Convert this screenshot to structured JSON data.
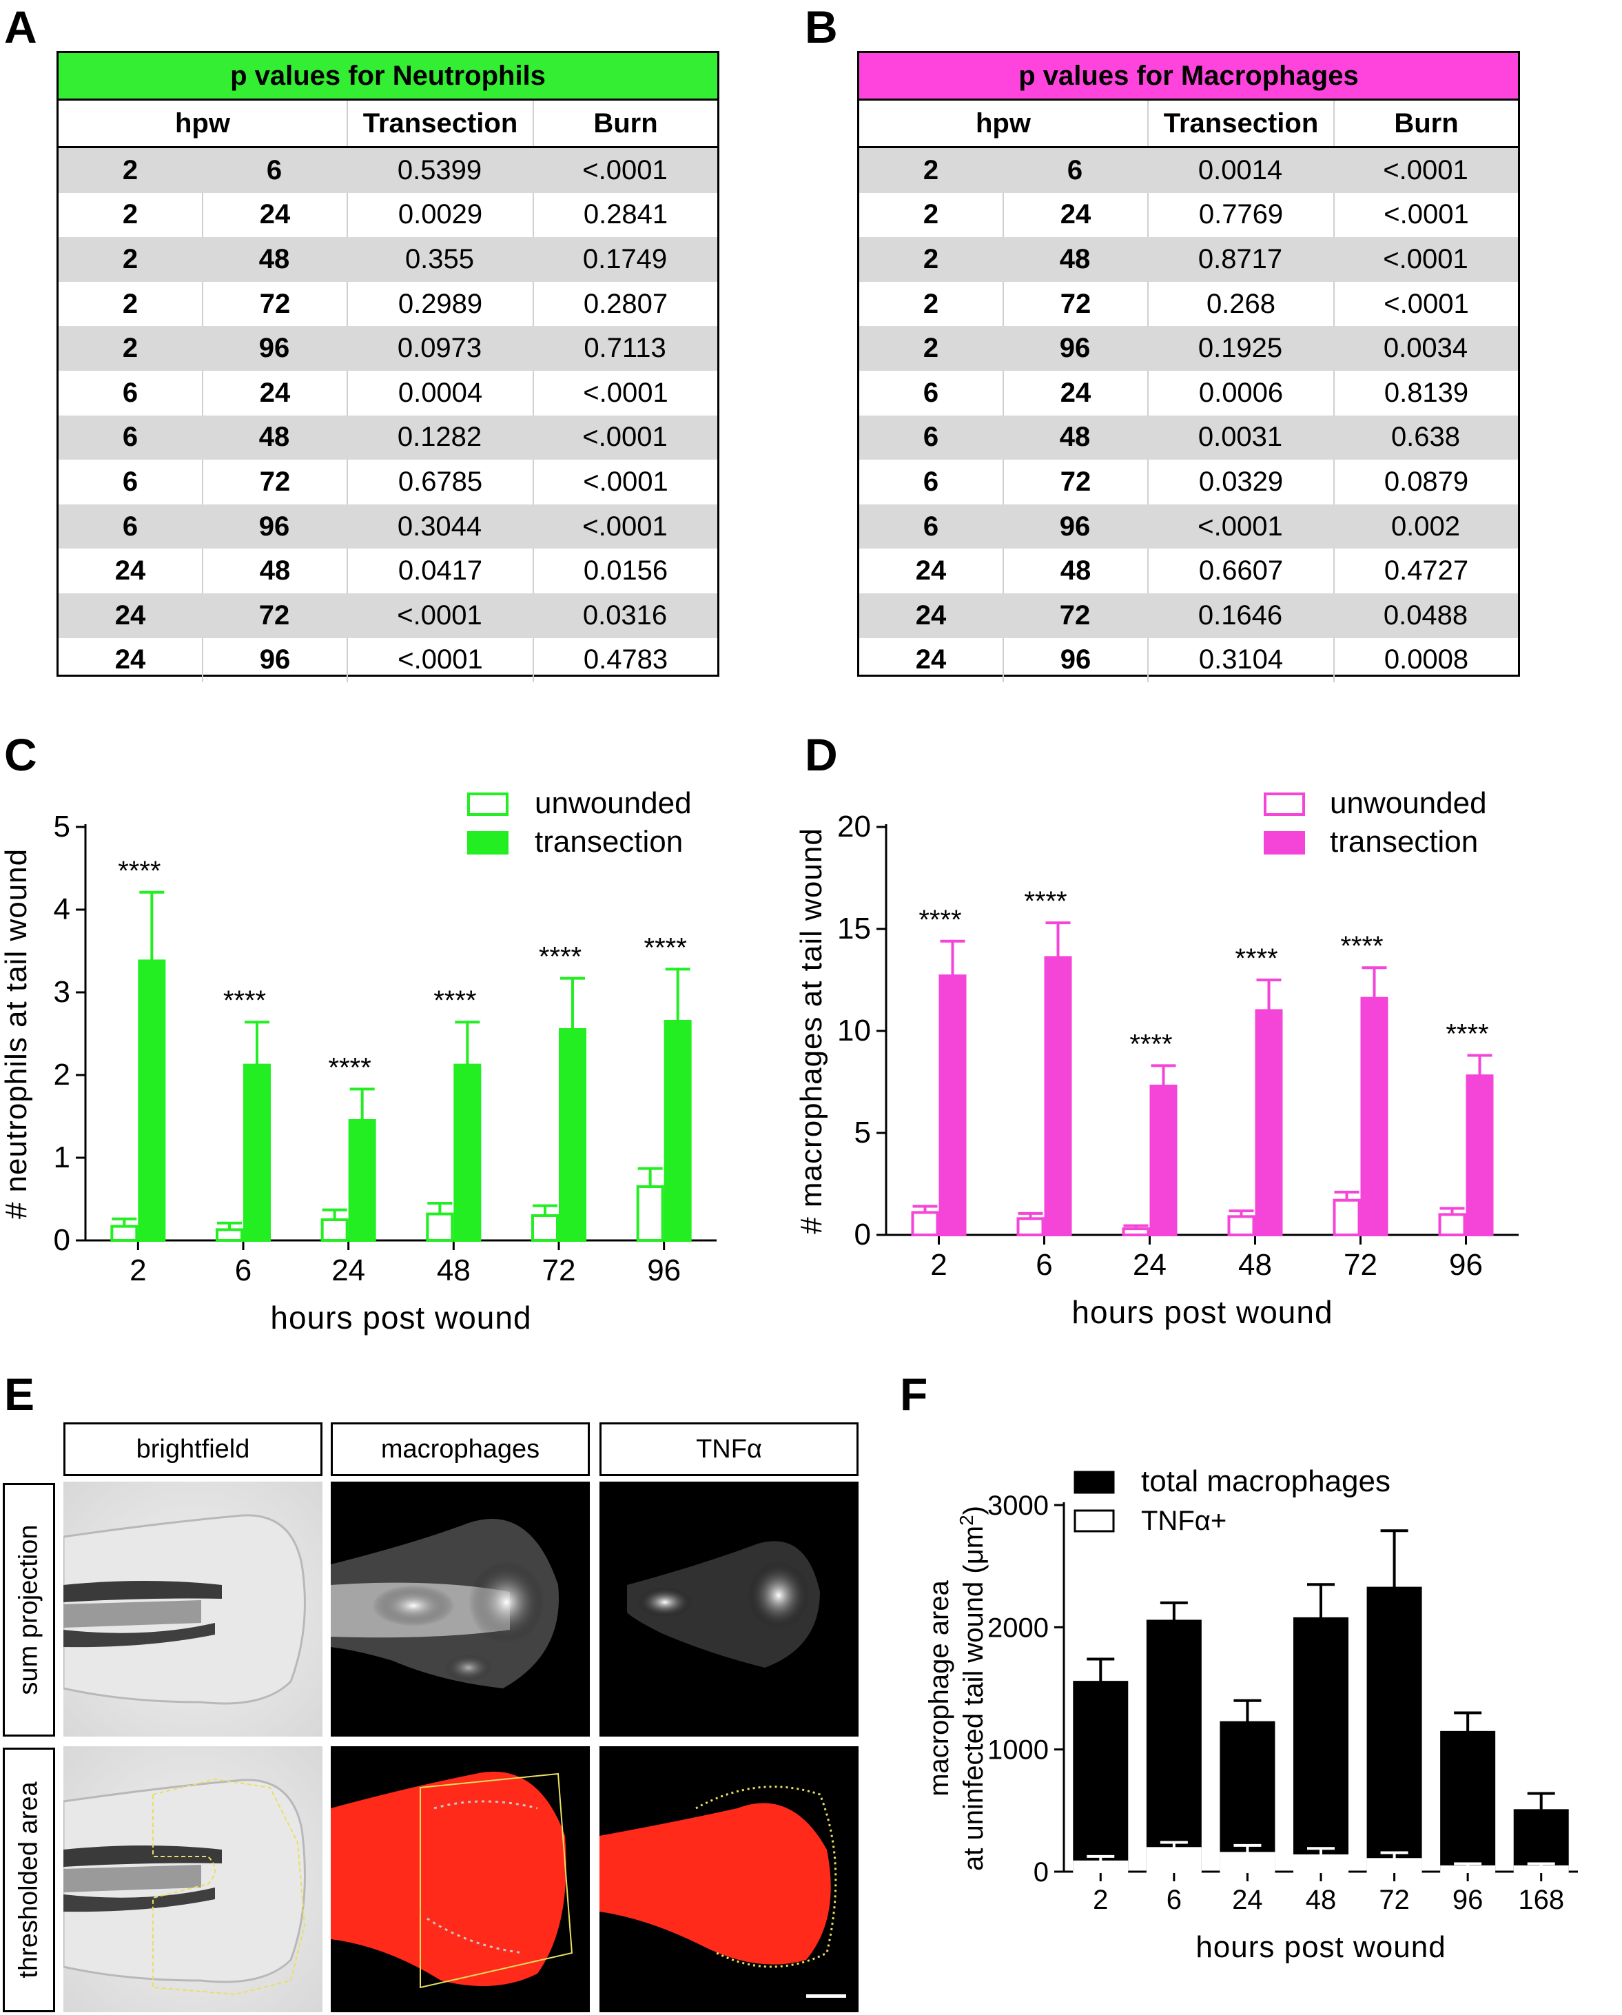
{
  "panels": {
    "A": "A",
    "B": "B",
    "C": "C",
    "D": "D",
    "E": "E",
    "F": "F"
  },
  "table_A": {
    "title": "p values for Neutrophils",
    "header_color": "#33ee33",
    "columns": [
      "hpw",
      "Transection",
      "Burn"
    ],
    "rows": [
      [
        "2",
        "6",
        "0.5399",
        "<.0001"
      ],
      [
        "2",
        "24",
        "0.0029",
        "0.2841"
      ],
      [
        "2",
        "48",
        "0.355",
        "0.1749"
      ],
      [
        "2",
        "72",
        "0.2989",
        "0.2807"
      ],
      [
        "2",
        "96",
        "0.0973",
        "0.7113"
      ],
      [
        "6",
        "24",
        "0.0004",
        "<.0001"
      ],
      [
        "6",
        "48",
        "0.1282",
        "<.0001"
      ],
      [
        "6",
        "72",
        "0.6785",
        "<.0001"
      ],
      [
        "6",
        "96",
        "0.3044",
        "<.0001"
      ],
      [
        "24",
        "48",
        "0.0417",
        "0.0156"
      ],
      [
        "24",
        "72",
        "<.0001",
        "0.0316"
      ],
      [
        "24",
        "96",
        "<.0001",
        "0.4783"
      ]
    ]
  },
  "table_B": {
    "title": "p values for Macrophages",
    "header_color": "#ff44dd",
    "columns": [
      "hpw",
      "Transection",
      "Burn"
    ],
    "rows": [
      [
        "2",
        "6",
        "0.0014",
        "<.0001"
      ],
      [
        "2",
        "24",
        "0.7769",
        "<.0001"
      ],
      [
        "2",
        "48",
        "0.8717",
        "<.0001"
      ],
      [
        "2",
        "72",
        "0.268",
        "<.0001"
      ],
      [
        "2",
        "96",
        "0.1925",
        "0.0034"
      ],
      [
        "6",
        "24",
        "0.0006",
        "0.8139"
      ],
      [
        "6",
        "48",
        "0.0031",
        "0.638"
      ],
      [
        "6",
        "72",
        "0.0329",
        "0.0879"
      ],
      [
        "6",
        "96",
        "<.0001",
        "0.002"
      ],
      [
        "24",
        "48",
        "0.6607",
        "0.4727"
      ],
      [
        "24",
        "72",
        "0.1646",
        "0.0488"
      ],
      [
        "24",
        "96",
        "0.3104",
        "0.0008"
      ]
    ]
  },
  "chart_data": [
    {
      "id": "C",
      "type": "bar",
      "color": "#22ee22",
      "categories": [
        "2",
        "6",
        "24",
        "48",
        "72",
        "96"
      ],
      "series": [
        {
          "name": "unwounded",
          "fill": "open",
          "values": [
            0.17,
            0.13,
            0.25,
            0.32,
            0.3,
            0.65
          ],
          "errors": [
            0.09,
            0.08,
            0.12,
            0.13,
            0.12,
            0.22
          ]
        },
        {
          "name": "transection",
          "fill": "solid",
          "values": [
            3.38,
            2.12,
            1.45,
            2.12,
            2.55,
            2.65
          ],
          "errors": [
            0.83,
            0.52,
            0.38,
            0.52,
            0.62,
            0.63
          ]
        }
      ],
      "significance": [
        "****",
        "****",
        "****",
        "****",
        "****",
        "****"
      ],
      "xlabel": "hours post wound",
      "ylabel": "# neutrophils at tail wound",
      "ylim": [
        0,
        5
      ],
      "yticks": [
        "0",
        "1",
        "2",
        "3",
        "4",
        "5"
      ],
      "legend": "top-right"
    },
    {
      "id": "D",
      "type": "bar",
      "color": "#f545d8",
      "categories": [
        "2",
        "6",
        "24",
        "48",
        "72",
        "96"
      ],
      "series": [
        {
          "name": "unwounded",
          "fill": "open",
          "values": [
            1.1,
            0.8,
            0.3,
            0.9,
            1.7,
            1.0
          ],
          "errors": [
            0.3,
            0.25,
            0.15,
            0.28,
            0.4,
            0.3
          ]
        },
        {
          "name": "transection",
          "fill": "solid",
          "values": [
            12.7,
            13.6,
            7.3,
            11.0,
            11.6,
            7.8
          ],
          "errors": [
            1.7,
            1.7,
            1.0,
            1.5,
            1.5,
            1.0
          ]
        }
      ],
      "significance": [
        "****",
        "****",
        "****",
        "****",
        "****",
        "****"
      ],
      "xlabel": "hours post wound",
      "ylabel": "# macrophages at tail wound",
      "ylim": [
        0,
        20
      ],
      "yticks": [
        "0",
        "5",
        "10",
        "15",
        "20"
      ],
      "legend": "top-right"
    },
    {
      "id": "F",
      "type": "bar",
      "color": "#000000",
      "categories": [
        "2",
        "6",
        "24",
        "48",
        "72",
        "96",
        "168"
      ],
      "series": [
        {
          "name": "total macrophages",
          "fill": "solid",
          "values": [
            1550,
            2050,
            1220,
            2070,
            2320,
            1140,
            500
          ],
          "errors": [
            190,
            150,
            180,
            280,
            470,
            160,
            140
          ]
        },
        {
          "name": "TNFα+",
          "fill": "open",
          "values": [
            80,
            190,
            150,
            130,
            100,
            40,
            40
          ],
          "errors": [
            45,
            50,
            65,
            60,
            55,
            25,
            25
          ]
        }
      ],
      "xlabel": "hours post wound",
      "ylabel_line1": "macrophage area",
      "ylabel_line2": "at uninfected tail wound (μm",
      "ylabel_sup": "2",
      "ylim": [
        0,
        3000
      ],
      "yticks": [
        "0",
        "1000",
        "2000",
        "3000"
      ],
      "legend": "top-right"
    }
  ],
  "panel_E": {
    "columns": [
      "brightfield",
      "macrophages",
      "TNFα"
    ],
    "rows": [
      "sum projection",
      "thresholded area"
    ]
  }
}
